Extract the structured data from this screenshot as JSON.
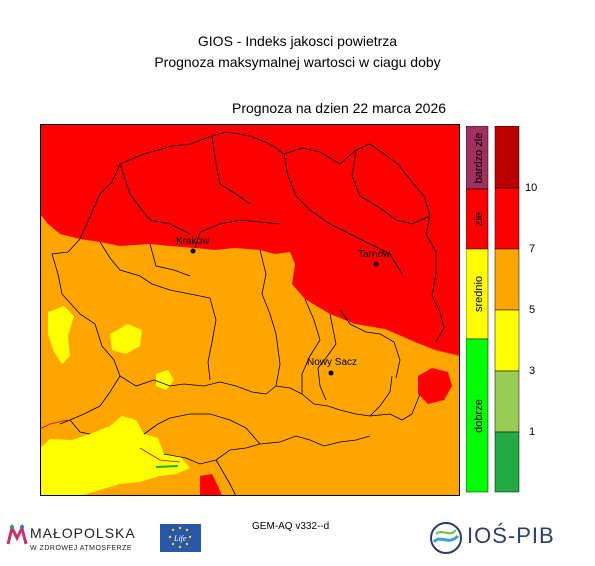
{
  "header": {
    "title_line1": "GIOS - Indeks jakosci powietrza",
    "title_line2": "Prognoza maksymalnej wartosci w ciagu doby",
    "date_line": "Prognoza na dzien  22 marca 2026"
  },
  "cities": [
    {
      "name": "Krakow"
    },
    {
      "name": "Tarnow"
    },
    {
      "name": "Nowy Sacz"
    }
  ],
  "legend": {
    "categories": [
      {
        "label": "bardzo zle",
        "color": "#a03060"
      },
      {
        "label": "zle",
        "color": "#ff0000"
      },
      {
        "label": "srednio",
        "color": "#ffff00"
      },
      {
        "label": "dobrze",
        "color": "#00ff00"
      }
    ],
    "scale_colors": [
      "#bb0000",
      "#ff0000",
      "#ffa500",
      "#ffff00",
      "#99cc55",
      "#22aa44"
    ],
    "scale_numbers": [
      "10",
      "7",
      "5",
      "3",
      "1"
    ]
  },
  "colors": {
    "orange": "#ffa500",
    "red": "#ff0000",
    "yellow": "#ffff00",
    "border": "#000000"
  },
  "footer": {
    "model": "GEM-AQ v332--d",
    "malopolska_name": "MAŁOPOLSKA",
    "malopolska_sub": "W ZDROWEJ ATMOSFERZE",
    "eu_life": "Life",
    "ios_name": "IOŚ-PIB"
  }
}
